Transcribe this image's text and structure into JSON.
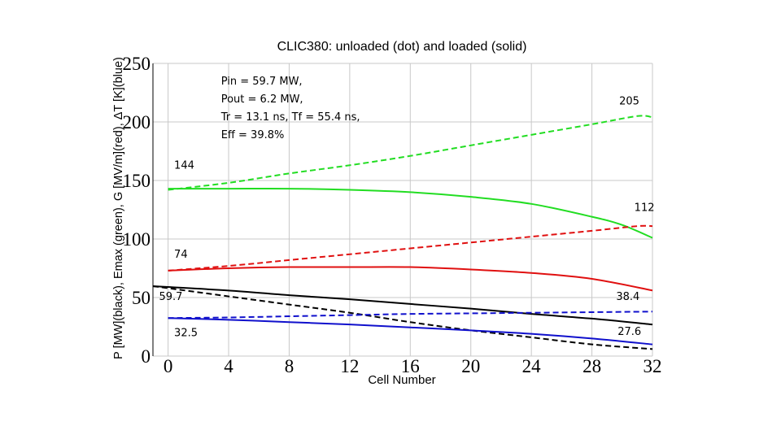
{
  "chart_data": {
    "type": "line",
    "title": "CLIC380: unloaded (dot) and loaded (solid)",
    "xlabel": "Cell Number",
    "ylabel": "P [MW](black), Emax (green), G [MV/m](red), ΔT [K](blue)",
    "xlim": [
      -1,
      32
    ],
    "ylim": [
      0,
      250
    ],
    "xticks": [
      0,
      4,
      8,
      12,
      16,
      20,
      24,
      28,
      32
    ],
    "yticks": [
      0,
      50,
      100,
      150,
      200,
      250
    ],
    "grid": true,
    "colors": {
      "green": "#22dd22",
      "red": "#e01010",
      "black": "#000000",
      "blue": "#1010cc"
    },
    "series": [
      {
        "color": "green",
        "style": "dashed",
        "x": [
          0,
          4,
          8,
          12,
          16,
          20,
          24,
          28,
          31,
          32
        ],
        "y": [
          142,
          148,
          156,
          163,
          171,
          180,
          189,
          198,
          205,
          204
        ]
      },
      {
        "color": "green",
        "style": "solid",
        "x": [
          0,
          4,
          8,
          12,
          16,
          20,
          24,
          28,
          30,
          32
        ],
        "y": [
          143,
          143,
          143,
          142,
          140,
          136,
          130,
          119,
          112,
          101
        ]
      },
      {
        "color": "red",
        "style": "dashed",
        "x": [
          0,
          4,
          8,
          12,
          16,
          20,
          24,
          28,
          31,
          32
        ],
        "y": [
          73,
          77,
          82,
          87,
          92,
          97,
          102,
          107,
          111,
          111
        ]
      },
      {
        "color": "red",
        "style": "solid",
        "x": [
          0,
          4,
          8,
          12,
          16,
          20,
          24,
          28,
          32
        ],
        "y": [
          73,
          75,
          76,
          76,
          76,
          74,
          71,
          66,
          56
        ]
      },
      {
        "color": "black",
        "style": "solid",
        "x": [
          -1,
          0,
          4,
          8,
          12,
          16,
          20,
          24,
          28,
          32
        ],
        "y": [
          59.7,
          59,
          56,
          52,
          48.5,
          44.5,
          40.5,
          36,
          32,
          27
        ]
      },
      {
        "color": "black",
        "style": "dashed",
        "x": [
          -1,
          0,
          4,
          8,
          12,
          16,
          20,
          24,
          28,
          32
        ],
        "y": [
          59.7,
          58,
          51,
          44,
          37,
          29,
          22,
          16,
          10,
          6
        ]
      },
      {
        "color": "blue",
        "style": "dashed",
        "x": [
          0,
          4,
          8,
          12,
          16,
          20,
          24,
          28,
          32
        ],
        "y": [
          32.5,
          33,
          34,
          35,
          36,
          36.5,
          37,
          37.5,
          38
        ]
      },
      {
        "color": "blue",
        "style": "solid",
        "x": [
          0,
          4,
          8,
          12,
          16,
          20,
          24,
          28,
          32
        ],
        "y": [
          32.5,
          31,
          29,
          27,
          24.5,
          22,
          19,
          15,
          10
        ]
      }
    ],
    "annotations": [
      {
        "lines": [
          "Pin = 59.7 MW,",
          "Pout = 6.2 MW,",
          "Tr = 13.1 ns, Tf = 55.4 ns,",
          "Eff = 39.8%"
        ],
        "x": 3.5,
        "y": 232
      },
      {
        "text": "205",
        "x": 29.8,
        "y": 215
      },
      {
        "text": "144",
        "x": 0.4,
        "y": 160
      },
      {
        "text": "112",
        "x": 30.8,
        "y": 124
      },
      {
        "text": "74",
        "x": 0.4,
        "y": 84
      },
      {
        "text": "59.7",
        "x": -0.6,
        "y": 48
      },
      {
        "text": "38.4",
        "x": 29.6,
        "y": 48
      },
      {
        "text": "32.5",
        "x": 0.4,
        "y": 17
      },
      {
        "text": "27.6",
        "x": 29.7,
        "y": 18
      }
    ]
  }
}
